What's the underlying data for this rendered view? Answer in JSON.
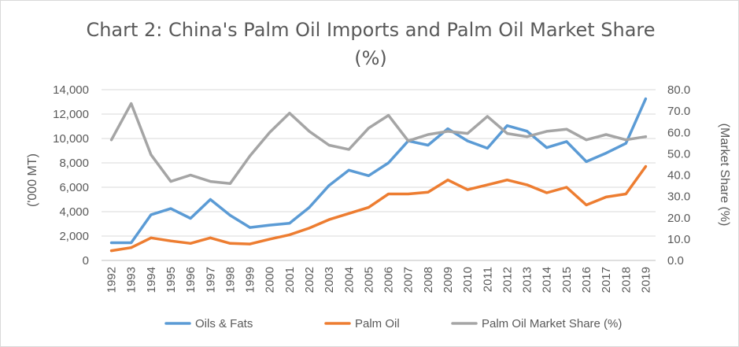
{
  "chart_data": {
    "type": "line",
    "title": "Chart 2: China's Palm Oil Imports and Palm Oil Market Share",
    "title_line2": "(%)",
    "xlabel": "",
    "ylabel": "('000 MT)",
    "y2label": "(Market Share (%)",
    "ylim": [
      0,
      14000
    ],
    "y2lim": [
      0,
      80
    ],
    "yticks": [
      "0",
      "2,000",
      "4,000",
      "6,000",
      "8,000",
      "10,000",
      "12,000",
      "14,000"
    ],
    "y2ticks": [
      "0.0",
      "10.0",
      "20.0",
      "30.0",
      "40.0",
      "50.0",
      "60.0",
      "70.0",
      "80.0"
    ],
    "grid": true,
    "legend_position": "bottom",
    "categories": [
      "1992",
      "1993",
      "1994",
      "1995",
      "1996",
      "1997",
      "1998",
      "1999",
      "2000",
      "2001",
      "2002",
      "2003",
      "2004",
      "2005",
      "2006",
      "2007",
      "2008",
      "2009",
      "2010",
      "2011",
      "2012",
      "2013",
      "2014",
      "2015",
      "2016",
      "2017",
      "2018",
      "2019"
    ],
    "series": [
      {
        "name": "Oils & Fats",
        "axis": "left",
        "color": "#5b9bd5",
        "values": [
          1450,
          1450,
          3750,
          4250,
          3450,
          5000,
          3700,
          2700,
          2900,
          3050,
          4350,
          6150,
          7400,
          6950,
          8000,
          9800,
          9450,
          10800,
          9800,
          9200,
          11050,
          10600,
          9250,
          9750,
          8100,
          8800,
          9600,
          13250
        ]
      },
      {
        "name": "Palm Oil",
        "axis": "left",
        "color": "#ed7d31",
        "values": [
          800,
          1050,
          1850,
          1600,
          1400,
          1850,
          1400,
          1350,
          1750,
          2100,
          2650,
          3350,
          3850,
          4350,
          5450,
          5450,
          5600,
          6600,
          5800,
          6200,
          6600,
          6200,
          5550,
          6000,
          4550,
          5200,
          5450,
          7700
        ]
      },
      {
        "name": "Palm Oil Market Share (%)",
        "axis": "right",
        "color": "#a5a5a5",
        "values": [
          56.5,
          73.5,
          49.5,
          37.0,
          40.0,
          37.0,
          36.0,
          49.0,
          60.0,
          69.0,
          60.5,
          54.0,
          52.0,
          62.0,
          68.0,
          56.0,
          59.0,
          60.5,
          59.5,
          67.5,
          59.5,
          58.0,
          60.5,
          61.5,
          56.5,
          59.0,
          56.5,
          58.0
        ]
      }
    ]
  }
}
